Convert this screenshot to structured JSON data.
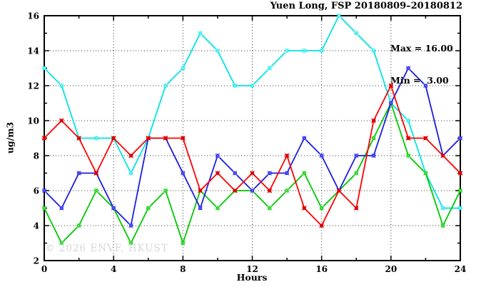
{
  "chart_data": {
    "type": "line",
    "title": "Yuen Long, FSP 20180809–20180812",
    "xlabel": "Hours",
    "ylabel": "ug/m3",
    "xlim": [
      0,
      24
    ],
    "ylim": [
      2,
      16
    ],
    "x_major_ticks": [
      0,
      4,
      8,
      12,
      16,
      20,
      24
    ],
    "x_minor_step": 2,
    "y_major_ticks": [
      2,
      4,
      6,
      8,
      10,
      12,
      14,
      16
    ],
    "y_minor_step": 1,
    "grid": true,
    "legend": {
      "position": "top-right",
      "lines": [
        "Max = 16.00",
        "Min =  3.00"
      ],
      "max": 16.0,
      "min": 3.0
    },
    "watermark": "© 2026 ENVF, HKUST",
    "x": [
      0,
      1,
      2,
      3,
      4,
      5,
      6,
      7,
      8,
      9,
      10,
      11,
      12,
      13,
      14,
      15,
      16,
      17,
      18,
      19,
      20,
      21,
      22,
      23,
      24
    ],
    "series": [
      {
        "name": "cyan",
        "color": "#00e4e4",
        "cross_color": "#8ffcfc",
        "values": [
          13,
          12,
          9,
          9,
          9,
          7,
          9,
          12,
          13,
          15,
          14,
          12,
          12,
          13,
          14,
          14,
          14,
          16,
          15,
          14,
          11,
          10,
          7,
          5,
          5
        ]
      },
      {
        "name": "green",
        "color": "#00c800",
        "cross_color": "#63e863",
        "values": [
          5,
          3,
          4,
          6,
          5,
          3,
          5,
          6,
          3,
          6,
          5,
          6,
          6,
          5,
          6,
          7,
          5,
          6,
          7,
          9,
          11,
          8,
          7,
          4,
          6
        ]
      },
      {
        "name": "blue",
        "color": "#1c1ce0",
        "cross_color": "#6a6aff",
        "values": [
          6,
          5,
          7,
          7,
          5,
          4,
          9,
          9,
          7,
          5,
          8,
          7,
          6,
          7,
          7,
          9,
          8,
          6,
          8,
          8,
          11,
          13,
          12,
          8,
          9
        ]
      },
      {
        "name": "red",
        "color": "#ff0000",
        "cross_color": "#c40000",
        "values": [
          9,
          10,
          9,
          7,
          9,
          8,
          9,
          9,
          9,
          6,
          7,
          6,
          7,
          6,
          8,
          5,
          4,
          6,
          5,
          10,
          12,
          9,
          9,
          8,
          7
        ]
      }
    ],
    "styles": {
      "grid_color": "#3a3a3a",
      "border_color": "#000000",
      "background": "#ffffff"
    }
  }
}
